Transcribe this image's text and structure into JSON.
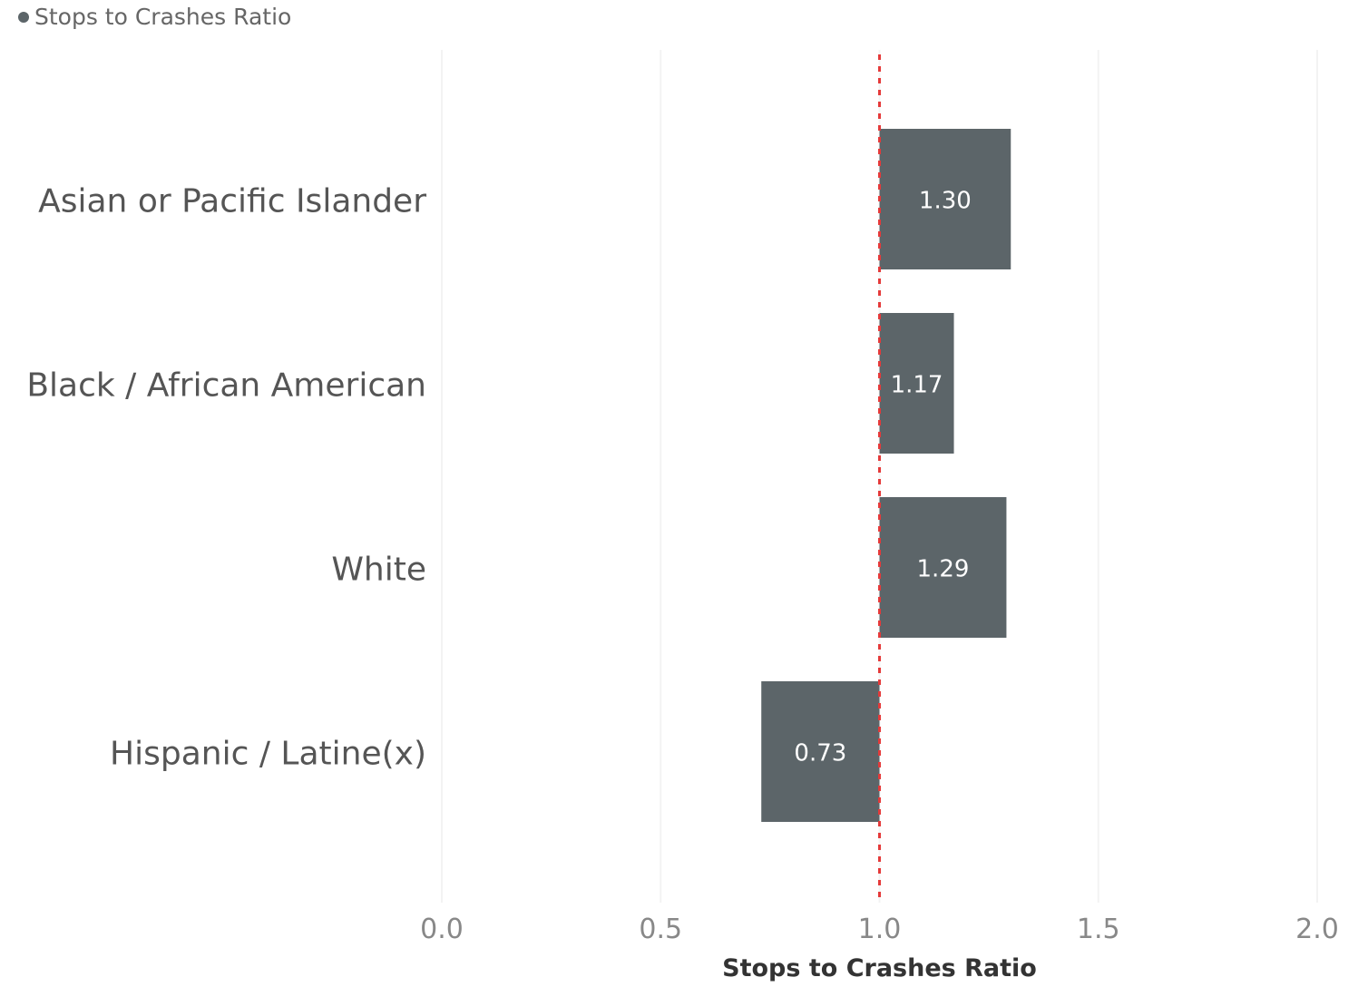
{
  "legend": {
    "label": "Stops to Crashes Ratio"
  },
  "colors": {
    "bar": "#5c6569",
    "reference_line": "#e53a3a",
    "grid": "#f3f3f3",
    "category_text": "#555555",
    "tick_text": "#888888",
    "axis_title_text": "#333333"
  },
  "chart_data": {
    "type": "bar",
    "orientation": "horizontal",
    "categories": [
      "Asian or Pacific Islander",
      "Black / African American",
      "White",
      "Hispanic / Latine(x)"
    ],
    "series": [
      {
        "name": "Stops to Crashes Ratio",
        "values": [
          1.3,
          1.17,
          1.29,
          0.73
        ],
        "labels": [
          "1.30",
          "1.17",
          "1.29",
          "0.73"
        ]
      }
    ],
    "baseline": 1.0,
    "reference_line": 1.0,
    "xlabel": "Stops to Crashes Ratio",
    "xlim": [
      0,
      2
    ],
    "xticks": [
      0,
      0.5,
      1,
      1.5,
      2
    ],
    "xtick_labels": [
      "0.0",
      "0.5",
      "1.0",
      "1.5",
      "2.0"
    ],
    "grid": true,
    "legend_position": "top-left"
  }
}
